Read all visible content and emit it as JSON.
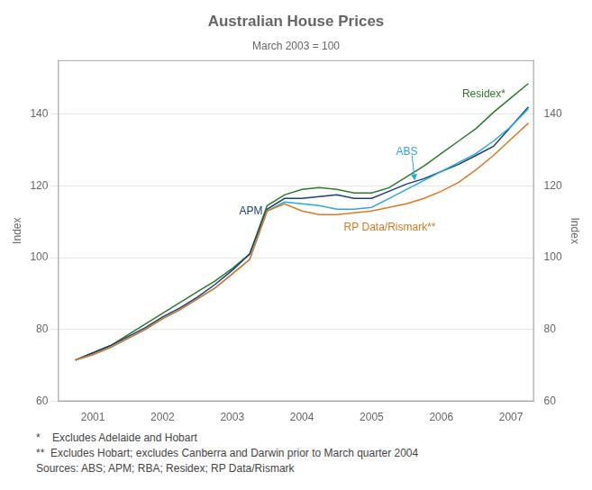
{
  "chart_data": {
    "type": "line",
    "title": "Australian House Prices",
    "subtitle": "March 2003 = 100",
    "ylabel": "Index",
    "y2label": "Index",
    "footnotes": [
      "*    Excludes Adelaide and Hobart",
      "**  Excludes Hobart; excludes Canberra and Darwin prior to March quarter 2004",
      "Sources: ABS; APM; RBA; Residex; RP Data/Rismark"
    ],
    "xlim": [
      2000.5,
      2007.33
    ],
    "xticks": [
      2001,
      2002,
      2003,
      2004,
      2005,
      2006,
      2007
    ],
    "ylim": [
      60,
      155
    ],
    "yticks": [
      60,
      80,
      100,
      120,
      140
    ],
    "y2lim": [
      60,
      155
    ],
    "y2ticks": [
      60,
      80,
      100,
      120,
      140
    ],
    "grid": "y",
    "x": [
      2000.75,
      2001.0,
      2001.25,
      2001.5,
      2001.75,
      2002.0,
      2002.25,
      2002.5,
      2002.75,
      2003.0,
      2003.25,
      2003.5,
      2003.75,
      2004.0,
      2004.25,
      2004.5,
      2004.75,
      2005.0,
      2005.25,
      2005.5,
      2005.75,
      2006.0,
      2006.25,
      2006.5,
      2006.75,
      2007.0,
      2007.25
    ],
    "series": [
      {
        "name": "RP Data/Rismark**",
        "color": "#e07820",
        "label_x": 2004.6,
        "label_y": 108.5,
        "values": [
          71.5,
          73.0,
          75.0,
          77.5,
          80.0,
          83.0,
          85.5,
          88.5,
          91.5,
          95.5,
          99.5,
          113.0,
          115.0,
          113.0,
          112.0,
          112.0,
          112.5,
          113.0,
          114.0,
          115.0,
          116.5,
          118.5,
          121.0,
          124.5,
          128.5,
          133.0,
          137.5
        ]
      },
      {
        "name": "ABS",
        "color": "#29a8e0",
        "label_x": 2005.35,
        "label_y": 129.5,
        "arrow": {
          "x_from": 2005.58,
          "y_from": 128.5,
          "x_to": 2005.62,
          "y_to": 121.5
        },
        "values": [
          71.5,
          73.0,
          75.0,
          77.5,
          80.0,
          83.0,
          85.5,
          88.5,
          91.5,
          95.5,
          99.5,
          113.0,
          115.5,
          115.0,
          114.5,
          113.5,
          113.5,
          114.0,
          116.5,
          119.0,
          121.5,
          124.0,
          126.5,
          129.0,
          132.5,
          136.5,
          141.5
        ]
      },
      {
        "name": "APM",
        "color": "#1a3d7c",
        "label_x": 2003.1,
        "label_y": 113.0,
        "values": [
          71.5,
          73.5,
          75.5,
          78.0,
          80.5,
          83.5,
          86.0,
          89.0,
          92.5,
          96.5,
          101.0,
          113.5,
          116.5,
          116.5,
          117.0,
          117.5,
          116.5,
          116.5,
          118.5,
          120.5,
          122.0,
          124.0,
          126.0,
          128.5,
          131.0,
          136.5,
          142.0
        ]
      },
      {
        "name": "Residex*",
        "color": "#2d7a2d",
        "label_x": 2006.3,
        "label_y": 145.5,
        "values": [
          71.5,
          73.5,
          75.5,
          78.5,
          81.5,
          84.5,
          87.5,
          90.5,
          93.5,
          97.0,
          101.0,
          114.5,
          117.5,
          119.0,
          119.5,
          119.0,
          118.0,
          118.0,
          119.5,
          122.5,
          125.5,
          129.0,
          132.5,
          136.0,
          140.5,
          144.5,
          148.5
        ]
      }
    ]
  }
}
